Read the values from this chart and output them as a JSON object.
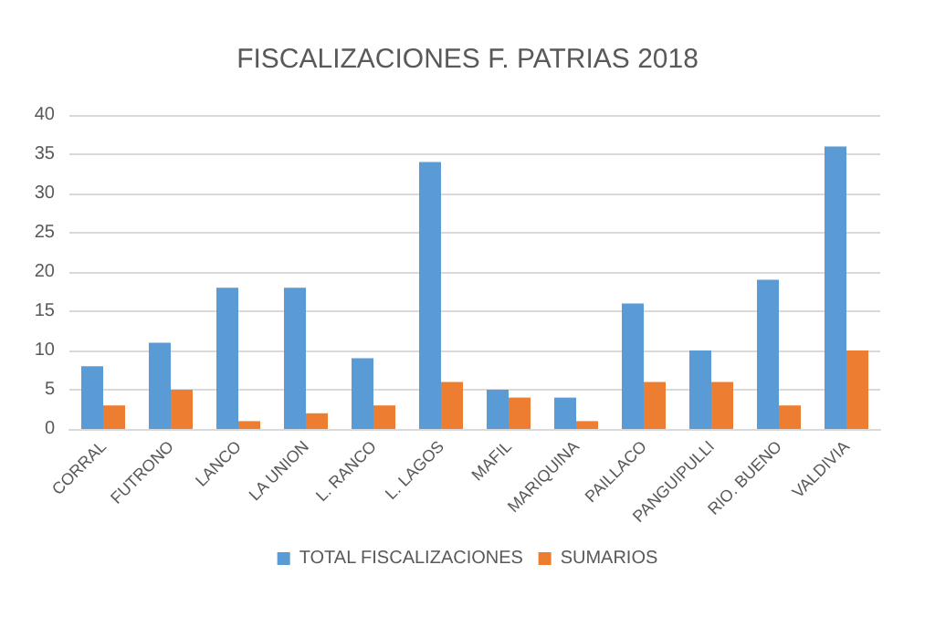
{
  "chart_data": {
    "type": "bar",
    "title": "FISCALIZACIONES F. PATRIAS 2018",
    "categories": [
      "CORRAL",
      "FUTRONO",
      "LANCO",
      "LA UNION",
      "L. RANCO",
      "L. LAGOS",
      "MAFIL",
      "MARIQUINA",
      "PAILLACO",
      "PANGUIPULLI",
      "RIO. BUENO",
      "VALDIVIA"
    ],
    "series": [
      {
        "name": "TOTAL FISCALIZACIONES",
        "color": "#5b9bd5",
        "values": [
          8,
          11,
          18,
          18,
          9,
          34,
          5,
          4,
          16,
          10,
          19,
          36
        ]
      },
      {
        "name": "SUMARIOS",
        "color": "#ed7d31",
        "values": [
          3,
          5,
          1,
          2,
          3,
          6,
          4,
          1,
          6,
          6,
          3,
          10
        ]
      }
    ],
    "ylim": [
      0,
      40
    ],
    "yticks": [
      0,
      5,
      10,
      15,
      20,
      25,
      30,
      35,
      40
    ],
    "grid": "y",
    "legend": "bottom"
  }
}
